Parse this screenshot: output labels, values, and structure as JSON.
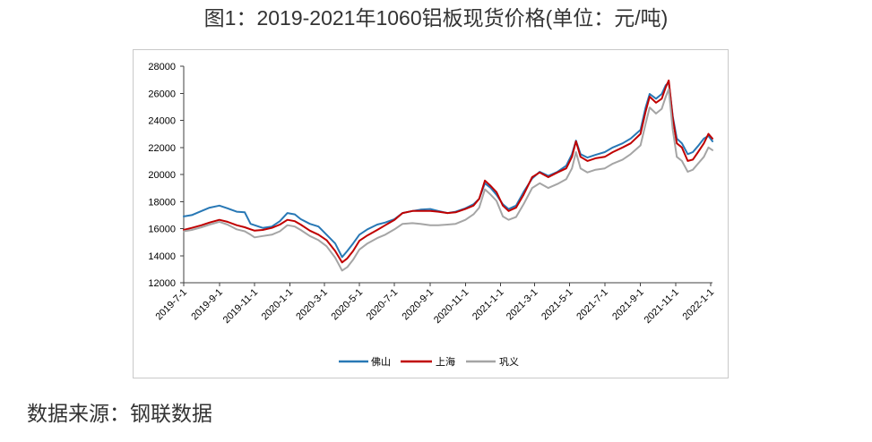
{
  "source": "数据来源：钢联数据",
  "chart_data": {
    "type": "line",
    "title": "图1：2019-2021年1060铝板现货价格(单位：元/吨)",
    "xlabel": "",
    "ylabel": "",
    "ylim": [
      12000,
      28000
    ],
    "y_ticks": [
      12000,
      14000,
      16000,
      18000,
      20000,
      22000,
      24000,
      26000,
      28000
    ],
    "xlim": [
      "2019-07-01",
      "2022-01-04"
    ],
    "x_tick_labels": [
      "2019-7-1",
      "2019-9-1",
      "2019-11-1",
      "2020-1-1",
      "2020-3-1",
      "2020-5-1",
      "2020-7-1",
      "2020-9-1",
      "2020-11-1",
      "2021-1-1",
      "2021-3-1",
      "2021-5-1",
      "2021-7-1",
      "2021-9-1",
      "2021-11-1",
      "2022-1-1"
    ],
    "grid": false,
    "legend_position": "bottom",
    "x": [
      "2019-07-01",
      "2019-07-15",
      "2019-08-01",
      "2019-08-15",
      "2019-09-01",
      "2019-09-15",
      "2019-10-01",
      "2019-10-15",
      "2019-10-25",
      "2019-11-01",
      "2019-11-15",
      "2019-12-01",
      "2019-12-15",
      "2019-12-28",
      "2020-01-10",
      "2020-01-20",
      "2020-02-05",
      "2020-02-20",
      "2020-03-05",
      "2020-03-20",
      "2020-04-01",
      "2020-04-10",
      "2020-04-20",
      "2020-05-01",
      "2020-05-15",
      "2020-06-01",
      "2020-06-15",
      "2020-07-01",
      "2020-07-15",
      "2020-08-01",
      "2020-08-15",
      "2020-09-01",
      "2020-09-15",
      "2020-10-01",
      "2020-10-15",
      "2020-11-01",
      "2020-11-15",
      "2020-11-25",
      "2020-12-05",
      "2020-12-15",
      "2020-12-25",
      "2021-01-05",
      "2021-01-15",
      "2021-01-28",
      "2021-02-10",
      "2021-02-25",
      "2021-03-10",
      "2021-03-25",
      "2021-04-10",
      "2021-04-25",
      "2021-05-05",
      "2021-05-12",
      "2021-05-20",
      "2021-06-01",
      "2021-06-15",
      "2021-07-01",
      "2021-07-15",
      "2021-08-01",
      "2021-08-15",
      "2021-09-01",
      "2021-09-10",
      "2021-09-17",
      "2021-09-28",
      "2021-10-08",
      "2021-10-15",
      "2021-10-20",
      "2021-10-27",
      "2021-11-03",
      "2021-11-12",
      "2021-11-22",
      "2021-12-01",
      "2021-12-10",
      "2021-12-20",
      "2021-12-28",
      "2022-01-04"
    ],
    "series": [
      {
        "name": "佛山",
        "color": "#2878B5",
        "values": [
          16900,
          17000,
          17300,
          17550,
          17700,
          17500,
          17250,
          17200,
          16350,
          16250,
          16050,
          16150,
          16550,
          17150,
          17050,
          16700,
          16350,
          16150,
          15550,
          14900,
          13900,
          14350,
          14900,
          15550,
          15950,
          16300,
          16450,
          16700,
          17150,
          17300,
          17400,
          17450,
          17300,
          17150,
          17250,
          17500,
          17800,
          18200,
          19350,
          19000,
          18500,
          17800,
          17450,
          17700,
          18700,
          19700,
          20200,
          19900,
          20200,
          20650,
          21500,
          22500,
          21500,
          21250,
          21450,
          21650,
          22000,
          22300,
          22650,
          23300,
          24950,
          25950,
          25600,
          25950,
          26600,
          26800,
          24300,
          22650,
          22300,
          21500,
          21650,
          22100,
          22650,
          22850,
          22450
        ]
      },
      {
        "name": "上海",
        "color": "#C00000",
        "values": [
          15900,
          16050,
          16250,
          16450,
          16650,
          16500,
          16250,
          16100,
          15950,
          15850,
          15900,
          16050,
          16300,
          16650,
          16550,
          16300,
          15850,
          15550,
          15150,
          14350,
          13500,
          13800,
          14350,
          15100,
          15500,
          15900,
          16250,
          16650,
          17150,
          17300,
          17300,
          17300,
          17250,
          17150,
          17200,
          17450,
          17700,
          18200,
          19550,
          19150,
          18700,
          17700,
          17300,
          17550,
          18500,
          19800,
          20150,
          19800,
          20150,
          20450,
          21300,
          22450,
          21300,
          21000,
          21200,
          21300,
          21650,
          22000,
          22300,
          23000,
          24650,
          25750,
          25300,
          25600,
          26450,
          26950,
          24150,
          22300,
          22000,
          21000,
          21100,
          21650,
          22300,
          23000,
          22650
        ]
      },
      {
        "name": "巩义",
        "color": "#A5A5A5",
        "values": [
          15800,
          15900,
          16100,
          16300,
          16500,
          16300,
          15950,
          15800,
          15550,
          15350,
          15450,
          15550,
          15800,
          16250,
          16150,
          15900,
          15450,
          15150,
          14700,
          13850,
          12900,
          13150,
          13700,
          14450,
          14900,
          15300,
          15550,
          15950,
          16350,
          16400,
          16350,
          16250,
          16250,
          16300,
          16350,
          16650,
          17050,
          17550,
          18900,
          18500,
          18050,
          16900,
          16650,
          16850,
          17800,
          19000,
          19350,
          19000,
          19300,
          19650,
          20450,
          21650,
          20450,
          20150,
          20350,
          20450,
          20800,
          21100,
          21500,
          22150,
          23750,
          24950,
          24500,
          24850,
          25750,
          26300,
          23300,
          21300,
          21000,
          20200,
          20350,
          20800,
          21300,
          22000,
          21800
        ]
      }
    ]
  }
}
